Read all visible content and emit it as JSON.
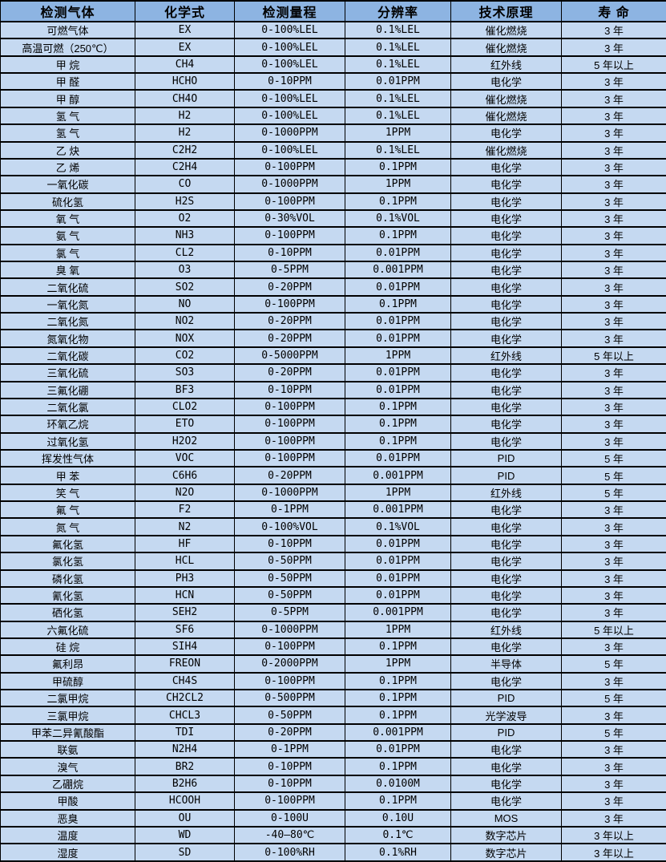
{
  "colors": {
    "header_bg": "#8db4e2",
    "row_bg": "#c5d9f1",
    "border": "#000000",
    "text": "#000000"
  },
  "table": {
    "columns": [
      {
        "key": "gas",
        "label": "检测气体"
      },
      {
        "key": "formula",
        "label": "化学式"
      },
      {
        "key": "range",
        "label": "检测量程"
      },
      {
        "key": "resolution",
        "label": "分辨率"
      },
      {
        "key": "principle",
        "label": "技术原理"
      },
      {
        "key": "lifespan",
        "label": "寿 命"
      }
    ],
    "rows": [
      [
        "可燃气体",
        "EX",
        "0-100%LEL",
        "0.1%LEL",
        "催化燃烧",
        "3 年"
      ],
      [
        "高温可燃（250℃）",
        "EX",
        "0-100%LEL",
        "0.1%LEL",
        "催化燃烧",
        "3 年"
      ],
      [
        "甲 烷",
        "CH4",
        "0-100%LEL",
        "0.1%LEL",
        "红外线",
        "5 年以上"
      ],
      [
        "甲 醛",
        "HCHO",
        "0-10PPM",
        "0.01PPM",
        "电化学",
        "3 年"
      ],
      [
        "甲 醇",
        "CH4O",
        "0-100%LEL",
        "0.1%LEL",
        "催化燃烧",
        "3 年"
      ],
      [
        "氢 气",
        "H2",
        "0-100%LEL",
        "0.1%LEL",
        "催化燃烧",
        "3 年"
      ],
      [
        "氢 气",
        "H2",
        "0-1000PPM",
        "1PPM",
        "电化学",
        "3 年"
      ],
      [
        "乙 炔",
        "C2H2",
        "0-100%LEL",
        "0.1%LEL",
        "催化燃烧",
        "3 年"
      ],
      [
        "乙 烯",
        "C2H4",
        "0-100PPM",
        "0.1PPM",
        "电化学",
        "3 年"
      ],
      [
        "一氧化碳",
        "CO",
        "0-1000PPM",
        "1PPM",
        "电化学",
        "3 年"
      ],
      [
        "硫化氢",
        "H2S",
        "0-100PPM",
        "0.1PPM",
        "电化学",
        "3 年"
      ],
      [
        "氧 气",
        "O2",
        "0-30%VOL",
        "0.1%VOL",
        "电化学",
        "3 年"
      ],
      [
        "氨 气",
        "NH3",
        "0-100PPM",
        "0.1PPM",
        "电化学",
        "3 年"
      ],
      [
        "氯 气",
        "CL2",
        "0-10PPM",
        "0.01PPM",
        "电化学",
        "3 年"
      ],
      [
        "臭 氧",
        "O3",
        "0-5PPM",
        "0.001PPM",
        "电化学",
        "3 年"
      ],
      [
        "二氧化硫",
        "SO2",
        "0-20PPM",
        "0.01PPM",
        "电化学",
        "3 年"
      ],
      [
        "一氧化氮",
        "NO",
        "0-100PPM",
        "0.1PPM",
        "电化学",
        "3 年"
      ],
      [
        "二氧化氮",
        "NO2",
        "0-20PPM",
        "0.01PPM",
        "电化学",
        "3 年"
      ],
      [
        "氮氧化物",
        "NOX",
        "0-20PPM",
        "0.01PPM",
        "电化学",
        "3 年"
      ],
      [
        "二氧化碳",
        "CO2",
        "0-5000PPM",
        "1PPM",
        "红外线",
        "5 年以上"
      ],
      [
        "三氧化硫",
        "SO3",
        "0-20PPM",
        "0.01PPM",
        "电化学",
        "3 年"
      ],
      [
        "三氟化硼",
        "BF3",
        "0-10PPM",
        "0.01PPM",
        "电化学",
        "3 年"
      ],
      [
        "二氧化氯",
        "CLO2",
        "0-100PPM",
        "0.1PPM",
        "电化学",
        "3 年"
      ],
      [
        "环氧乙烷",
        "ETO",
        "0-100PPM",
        "0.1PPM",
        "电化学",
        "3 年"
      ],
      [
        "过氧化氢",
        "H2O2",
        "0-100PPM",
        "0.1PPM",
        "电化学",
        "3 年"
      ],
      [
        "挥发性气体",
        "VOC",
        "0-100PPM",
        "0.01PPM",
        "PID",
        "5 年"
      ],
      [
        "甲 苯",
        "C6H6",
        "0-20PPM",
        "0.001PPM",
        "PID",
        "5 年"
      ],
      [
        "笑 气",
        "N2O",
        "0-1000PPM",
        "1PPM",
        "红外线",
        "5 年"
      ],
      [
        "氟 气",
        "F2",
        "0-1PPM",
        "0.001PPM",
        "电化学",
        "3 年"
      ],
      [
        "氮 气",
        "N2",
        "0-100%VOL",
        "0.1%VOL",
        "电化学",
        "3 年"
      ],
      [
        "氟化氢",
        "HF",
        "0-10PPM",
        "0.01PPM",
        "电化学",
        "3 年"
      ],
      [
        "氯化氢",
        "HCL",
        "0-50PPM",
        "0.01PPM",
        "电化学",
        "3 年"
      ],
      [
        "磷化氢",
        "PH3",
        "0-50PPM",
        "0.01PPM",
        "电化学",
        "3 年"
      ],
      [
        "氰化氢",
        "HCN",
        "0-50PPM",
        "0.01PPM",
        "电化学",
        "3 年"
      ],
      [
        "硒化氢",
        "SEH2",
        "0-5PPM",
        "0.001PPM",
        "电化学",
        "3 年"
      ],
      [
        "六氟化硫",
        "SF6",
        "0-1000PPM",
        "1PPM",
        "红外线",
        "5 年以上"
      ],
      [
        "硅 烷",
        "SIH4",
        "0-100PPM",
        "0.1PPM",
        "电化学",
        "3 年"
      ],
      [
        "氟利昂",
        "FREON",
        "0-2000PPM",
        "1PPM",
        "半导体",
        "5 年"
      ],
      [
        "甲硫醇",
        "CH4S",
        "0-100PPM",
        "0.1PPM",
        "电化学",
        "3 年"
      ],
      [
        "二氯甲烷",
        "CH2CL2",
        "0-500PPM",
        "0.1PPM",
        "PID",
        "5 年"
      ],
      [
        "三氯甲烷",
        "CHCL3",
        "0-50PPM",
        "0.1PPM",
        "光学波导",
        "3 年"
      ],
      [
        "甲苯二异氰酸酯",
        "TDI",
        "0-20PPM",
        "0.001PPM",
        "PID",
        "5 年"
      ],
      [
        "联氨",
        "N2H4",
        "0-1PPM",
        "0.01PPM",
        "电化学",
        "3 年"
      ],
      [
        "溴气",
        "BR2",
        "0-10PPM",
        "0.1PPM",
        "电化学",
        "3 年"
      ],
      [
        "乙硼烷",
        "B2H6",
        "0-10PPM",
        "0.0100M",
        "电化学",
        "3 年"
      ],
      [
        "甲酸",
        "HCOOH",
        "0-100PPM",
        "0.1PPM",
        "电化学",
        "3 年"
      ],
      [
        "恶臭",
        "OU",
        "0-100U",
        "0.10U",
        "MOS",
        "3 年"
      ],
      [
        "温度",
        "WD",
        "-40—80℃",
        "0.1℃",
        "数字芯片",
        "3 年以上"
      ],
      [
        "湿度",
        "SD",
        "0-100%RH",
        "0.1%RH",
        "数字芯片",
        "3 年以上"
      ]
    ]
  }
}
